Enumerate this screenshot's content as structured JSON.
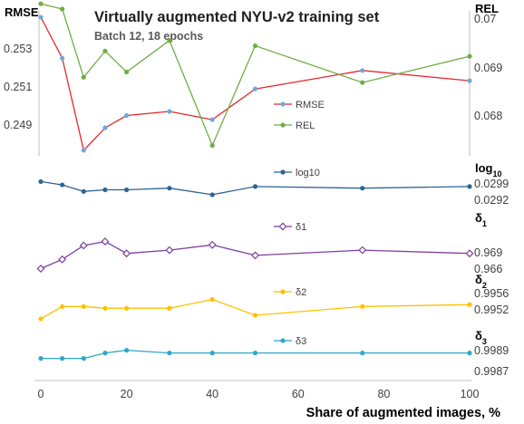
{
  "chart_data": {
    "type": "line",
    "title": "Virtually augmented NYU-v2 training set",
    "subtitle": "Batch 12, 18 epochs",
    "xlabel": "Share of augmented images, %",
    "x": [
      0,
      5,
      10,
      15,
      20,
      30,
      40,
      50,
      75,
      100
    ],
    "x_ticks": [
      "0",
      "20",
      "40",
      "60",
      "80",
      "100"
    ],
    "xlim": [
      0,
      100
    ],
    "grid": false,
    "legend_placement": "inline next to each series",
    "panels": [
      {
        "id": "top",
        "left_axis": {
          "label": "RMSE",
          "ticks": [
            "0.253",
            "0.251",
            "0.249"
          ],
          "ylim": [
            0.2474,
            0.2547
          ]
        },
        "right_axis": {
          "label": "REL",
          "ticks": [
            "0.07",
            "0.069",
            "0.068"
          ],
          "ylim": [
            0.06715,
            0.07
          ]
        },
        "series": [
          {
            "name": "RMSE",
            "axis": "left",
            "color": "#e8262a",
            "marker_color": "#6fa8dc",
            "values": [
              0.2543,
              0.2523,
              0.2478,
              0.2489,
              0.2495,
              0.2497,
              0.2493,
              0.2508,
              0.2517,
              0.2512
            ]
          },
          {
            "name": "REL",
            "axis": "right",
            "color": "#70ad47",
            "marker_color": "#70ad47",
            "values": [
              0.0701,
              0.07,
              0.0687,
              0.0692,
              0.0688,
              0.0694,
              0.0674,
              0.0693,
              0.0686,
              0.0691
            ]
          }
        ]
      },
      {
        "id": "log10",
        "right_axis": {
          "label": "log",
          "label_sub": "10",
          "ticks": [
            "0.0299",
            "0.0292"
          ],
          "ylim": [
            0.0288,
            0.0304
          ]
        },
        "series": [
          {
            "name": "log10",
            "color": "#2e6494",
            "marker": "circle",
            "values": [
              0.0301,
              0.0299,
              0.0295,
              0.0296,
              0.0296,
              0.0297,
              0.0293,
              0.0298,
              0.0297,
              0.0298
            ]
          }
        ]
      },
      {
        "id": "d1",
        "right_axis": {
          "label": "δ",
          "label_sub": "1",
          "ticks": [
            "0.969",
            "0.966"
          ],
          "ylim": [
            0.9646,
            0.9709
          ]
        },
        "series": [
          {
            "name": "δ1",
            "color": "#7e3fa0",
            "marker": "diamond",
            "values": [
              0.9648,
              0.9662,
              0.9683,
              0.9689,
              0.9671,
              0.9676,
              0.9684,
              0.9668,
              0.9676,
              0.9671
            ]
          }
        ]
      },
      {
        "id": "d2",
        "right_axis": {
          "label": "δ",
          "label_sub": "2",
          "ticks": [
            "0.9956",
            "0.9952"
          ],
          "ylim": [
            0.99497,
            0.99597
          ]
        },
        "series": [
          {
            "name": "δ2",
            "color": "#ffc000",
            "marker": "circle",
            "values": [
              0.9951,
              0.99545,
              0.99545,
              0.9954,
              0.9954,
              0.9954,
              0.99565,
              0.9952,
              0.99545,
              0.9955
            ]
          }
        ]
      },
      {
        "id": "d3",
        "right_axis": {
          "label": "δ",
          "label_sub": "3",
          "ticks": [
            "0.9989",
            "0.9987"
          ],
          "ylim": [
            0.99866,
            0.99916
          ]
        },
        "series": [
          {
            "name": "δ3",
            "color": "#2fa8c8",
            "marker": "circle",
            "values": [
              0.9988,
              0.9988,
              0.9988,
              0.9989,
              0.99895,
              0.9989,
              0.9989,
              0.9989,
              0.9989,
              0.9989
            ]
          }
        ]
      }
    ]
  }
}
